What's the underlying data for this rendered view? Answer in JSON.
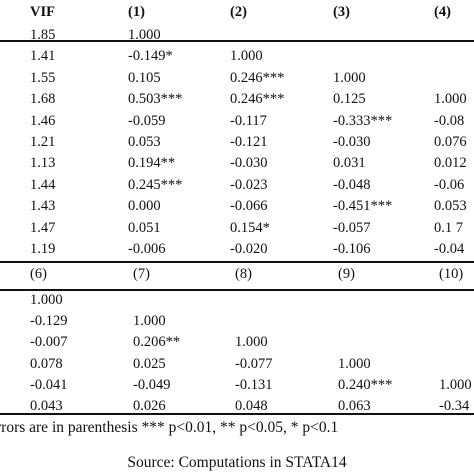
{
  "table": {
    "header1": [
      "VIF",
      "(1)",
      "(2)",
      "(3)",
      "(4)"
    ],
    "rows1": [
      [
        "1.85",
        "1.000",
        "",
        "",
        ""
      ],
      [
        "1.41",
        "-0.149*",
        "1.000",
        "",
        ""
      ],
      [
        "1.55",
        "0.105",
        "0.246***",
        "1.000",
        ""
      ],
      [
        "1.68",
        "0.503***",
        "0.246***",
        "0.125",
        "1.000"
      ],
      [
        "1.46",
        "-0.059",
        "-0.117",
        "-0.333***",
        "-0.08"
      ],
      [
        "1.21",
        "0.053",
        "-0.121",
        "-0.030",
        "0.076"
      ],
      [
        "1.13",
        "0.194**",
        "-0.030",
        "0.031",
        "0.012"
      ],
      [
        "1.44",
        "0.245***",
        "-0.023",
        "-0.048",
        "-0.06"
      ],
      [
        "1.43",
        "0.000",
        "-0.066",
        "-0.451***",
        "0.053"
      ],
      [
        "1.47",
        "0.051",
        "0.154*",
        "-0.057",
        "0.1 7"
      ],
      [
        "1.19",
        "-0.006",
        "-0.020",
        "-0.106",
        "-0.04"
      ]
    ],
    "header2": [
      "(6)",
      "(7)",
      "(8)",
      "(9)",
      "(10)"
    ],
    "rows2": [
      [
        "1.000",
        "",
        "",
        "",
        ""
      ],
      [
        "-0.129",
        "1.000",
        "",
        "",
        ""
      ],
      [
        "-0.007",
        "0.206**",
        "1.000",
        "",
        ""
      ],
      [
        "0.078",
        "0.025",
        "-0.077",
        "1.000",
        ""
      ],
      [
        "-0.041",
        "-0.049",
        "-0.131",
        "0.240***",
        "1.000"
      ],
      [
        "0.043",
        "0.026",
        "0.048",
        "0.063",
        "-0.34"
      ]
    ],
    "footnote": "rrors are in parenthesis *** p<0.01, ** p<0.05, * p<0.1",
    "source": "Source: Computations in STATA14"
  }
}
